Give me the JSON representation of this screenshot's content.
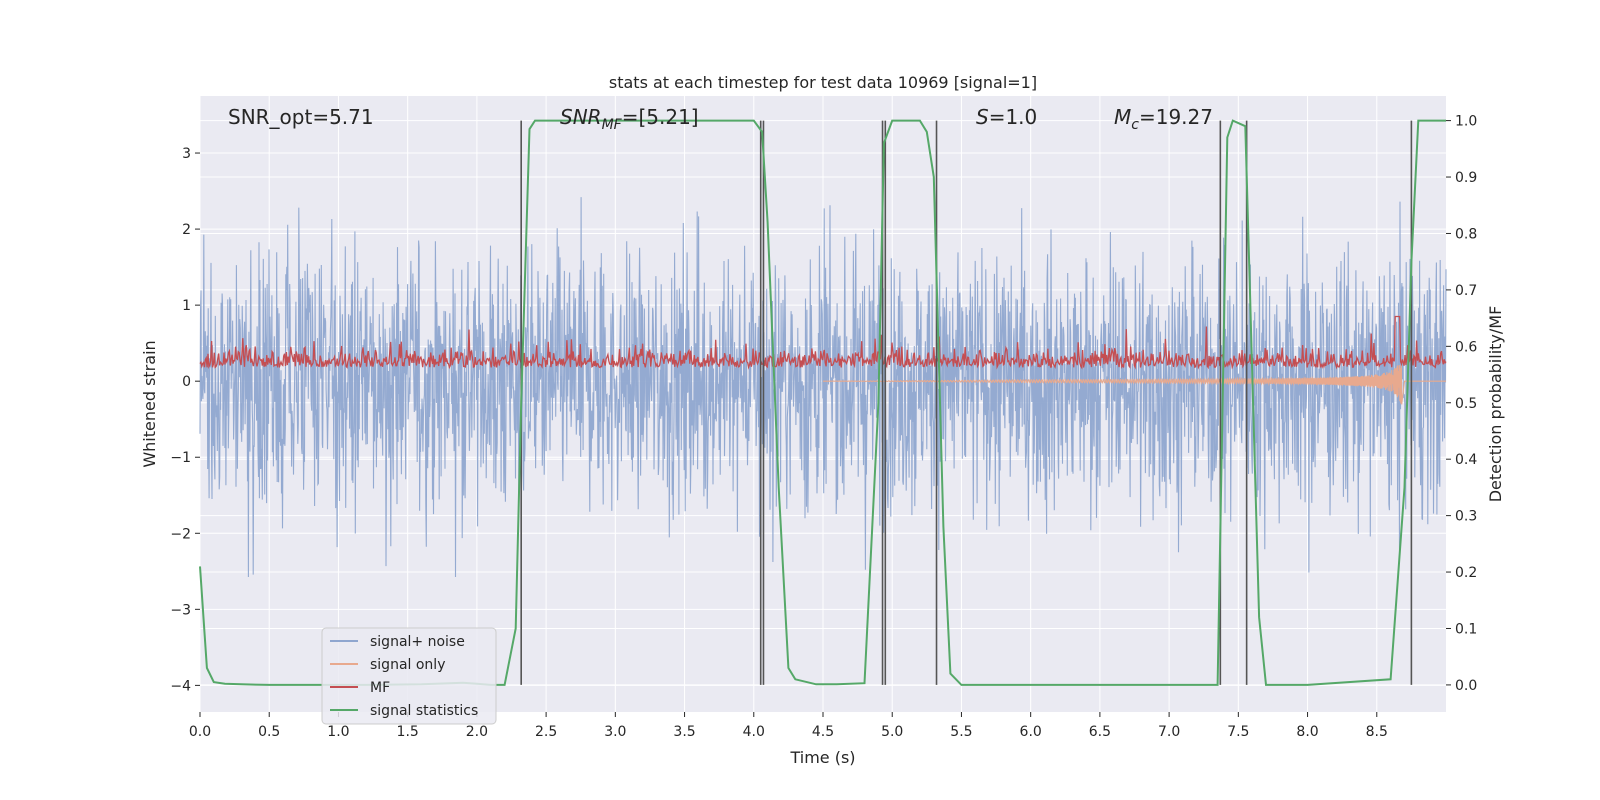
{
  "chart_data": {
    "type": "line",
    "title": "stats at each timestep for test data 10969 [signal=1]",
    "xlabel": "Time (s)",
    "ylabel": "Whitened strain",
    "ylabel_right": "Detection probability/MF",
    "xlim": [
      0.0,
      9.0
    ],
    "ylim": [
      -4.35,
      3.75
    ],
    "ylim_right": [
      -0.048,
      1.0436
    ],
    "x_ticks": [
      "0.0",
      "0.5",
      "1.0",
      "1.5",
      "2.0",
      "2.5",
      "3.0",
      "3.5",
      "4.0",
      "4.5",
      "5.0",
      "5.5",
      "6.0",
      "6.5",
      "7.0",
      "7.5",
      "8.0",
      "8.5"
    ],
    "y_ticks": [
      "−4",
      "−3",
      "−2",
      "−1",
      "0",
      "1",
      "2",
      "3"
    ],
    "y_ticks_right": [
      "0.0",
      "0.1",
      "0.2",
      "0.3",
      "0.4",
      "0.5",
      "0.6",
      "0.7",
      "0.8",
      "0.9",
      "1.0"
    ],
    "annotations": {
      "snr_opt": "SNR_opt=5.71",
      "snr_mf_base": "SNR",
      "snr_mf_sub": "MF",
      "snr_mf_rest": "=[5.21]",
      "s_var": "S",
      "s_rest": "=1.0",
      "mc_var": "M",
      "mc_sub": "c",
      "mc_rest": "=19.27"
    },
    "legend": {
      "placement": "lower-left",
      "entries": [
        "signal+ noise",
        "signal only",
        "MF",
        "signal statistics"
      ]
    },
    "colors": {
      "signal_noise": "#8fa6cf",
      "signal_only": "#e8a98e",
      "mf": "#c44e52",
      "statistics": "#55a868",
      "vlines": "#555555",
      "plot_bg": "#eaeaf2",
      "grid": "#ffffff"
    },
    "series": [
      {
        "name": "signal statistics",
        "axis": "right",
        "x": [
          0.0,
          0.05,
          0.1,
          0.18,
          0.3,
          0.5,
          0.8,
          1.2,
          1.6,
          1.9,
          2.0,
          2.1,
          2.2,
          2.28,
          2.32,
          2.38,
          2.42,
          3.0,
          3.5,
          4.0,
          4.06,
          4.1,
          4.18,
          4.25,
          4.3,
          4.45,
          4.6,
          4.8,
          4.9,
          4.94,
          5.0,
          5.2,
          5.25,
          5.3,
          5.37,
          5.42,
          5.5,
          6.0,
          7.0,
          7.35,
          7.42,
          7.46,
          7.55,
          7.65,
          7.7,
          8.0,
          8.6,
          8.7,
          8.75,
          8.8,
          9.0
        ],
        "values": [
          0.21,
          0.03,
          0.005,
          0.002,
          0.001,
          0.0,
          0.0,
          0.0,
          0.001,
          0.004,
          0.002,
          0.0,
          0.0,
          0.1,
          0.5,
          0.985,
          1.0,
          1.0,
          1.0,
          1.0,
          0.98,
          0.82,
          0.35,
          0.03,
          0.01,
          0.001,
          0.001,
          0.003,
          0.5,
          0.96,
          1.0,
          1.0,
          0.98,
          0.9,
          0.28,
          0.02,
          0.0,
          0.0,
          0.0,
          0.0,
          0.97,
          1.0,
          0.99,
          0.12,
          0.0,
          0.0,
          0.01,
          0.35,
          0.75,
          1.0,
          1.0
        ]
      }
    ],
    "vertical_lines_x": [
      2.32,
      4.05,
      4.07,
      4.93,
      4.95,
      5.32,
      7.37,
      7.56,
      8.75
    ]
  }
}
